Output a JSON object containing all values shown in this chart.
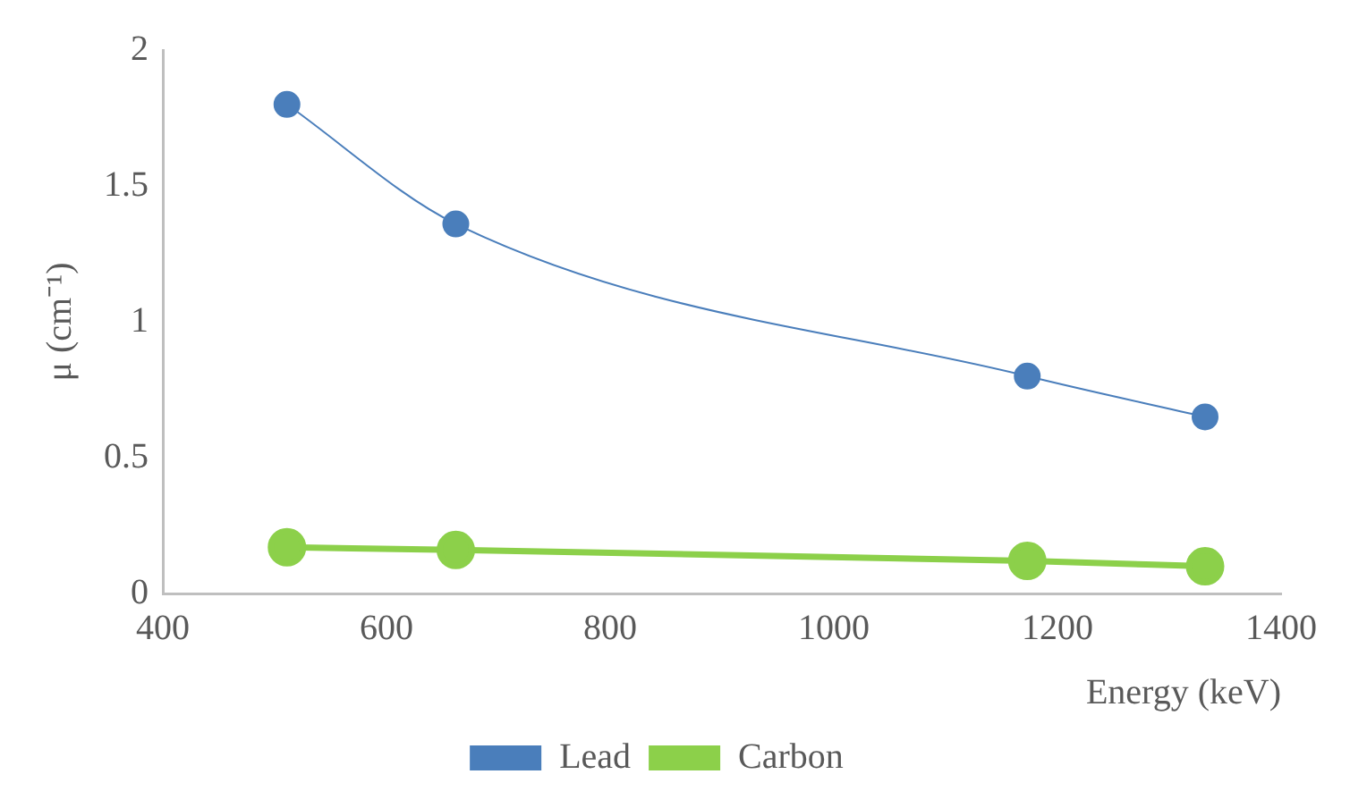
{
  "chart_data": {
    "type": "line",
    "xlabel": "Energy (keV)",
    "ylabel": "μ (cm⁻¹)",
    "x": [
      511,
      662,
      1173,
      1332
    ],
    "series": [
      {
        "name": "Lead",
        "color": "#4a7ebb",
        "values": [
          1.8,
          1.36,
          0.8,
          0.65
        ]
      },
      {
        "name": "Carbon",
        "color": "#8cd04a",
        "values": [
          0.17,
          0.16,
          0.12,
          0.1
        ]
      }
    ],
    "xlim": [
      400,
      1400
    ],
    "xticks": [
      400,
      600,
      800,
      1000,
      1200,
      1400
    ],
    "ylim": [
      0,
      2
    ],
    "yticks": [
      0,
      0.5,
      1,
      1.5,
      2
    ],
    "grid": false,
    "legend": "bottom",
    "marker": "circle",
    "line_style": "solid"
  }
}
